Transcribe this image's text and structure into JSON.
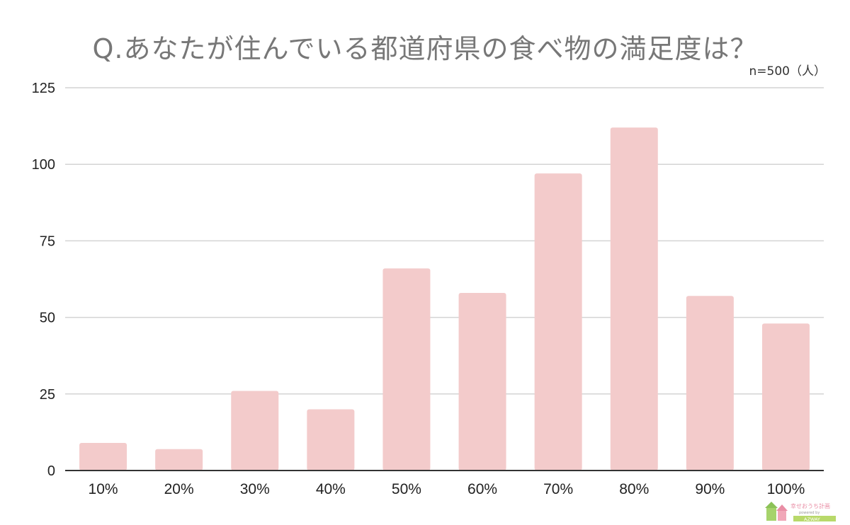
{
  "chart_data": {
    "type": "bar",
    "title": "Q.あなたが住んでいる都道府県の食べ物の満足度は？",
    "note": "n=500（人）",
    "categories": [
      "10%",
      "20%",
      "30%",
      "40%",
      "50%",
      "60%",
      "70%",
      "80%",
      "90%",
      "100%"
    ],
    "values": [
      9,
      7,
      26,
      20,
      66,
      58,
      97,
      112,
      57,
      48
    ],
    "ylim": [
      0,
      125
    ],
    "yticks": [
      0,
      25,
      50,
      75,
      100,
      125
    ],
    "grid": true,
    "bar_color": "#f3cbcb",
    "grid_color": "#d4d4d4",
    "axis_color": "#333333"
  },
  "logo": {
    "text_top": "幸せおうち計画",
    "text_mid": "powered by",
    "text_bottom": "AZWAY"
  }
}
